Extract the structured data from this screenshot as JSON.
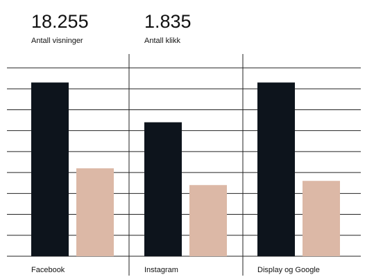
{
  "chart_data": {
    "type": "bar",
    "kpis": [
      {
        "value": "18.255",
        "label": "Antall visninger"
      },
      {
        "value": "1.835",
        "label": "Antall klikk"
      }
    ],
    "categories": [
      "Facebook",
      "Instagram",
      "Display og Google"
    ],
    "series": [
      {
        "color": "#0d141c",
        "values": [
          8.3,
          6.4,
          8.3
        ]
      },
      {
        "color": "#dcb8a6",
        "values": [
          4.2,
          3.4,
          3.6
        ]
      }
    ],
    "ylim": [
      0,
      9
    ],
    "yticks": [
      0,
      1,
      2,
      3,
      4,
      5,
      6,
      7,
      8,
      9
    ],
    "grid": true
  }
}
